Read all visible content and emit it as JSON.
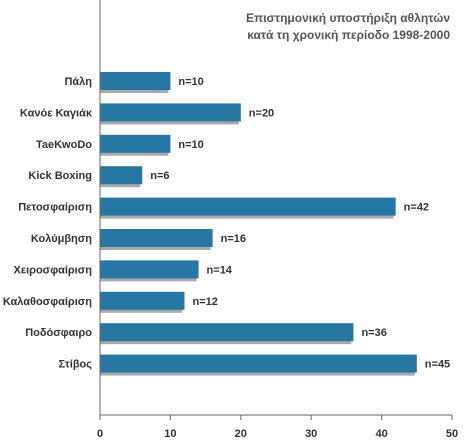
{
  "chart_data": {
    "type": "bar",
    "orientation": "horizontal",
    "title_lines": [
      "Επιστημονική υποστήριξη αθλητών",
      "κατά τη χρονική περίοδο 1998-2000"
    ],
    "categories": [
      "Πάλη",
      "Κανόε Καγιάκ",
      "TaeKwoDo",
      "Kick Boxing",
      "Πετοσφαίριση",
      "Κολύμβηση",
      "Χειροσφαίριση",
      "Καλαθοσφαίριση",
      "Ποδόσφαιρο",
      "Στίβος"
    ],
    "values": [
      10,
      20,
      10,
      6,
      42,
      16,
      14,
      12,
      36,
      45
    ],
    "value_labels": [
      "n=10",
      "n=20",
      "n=10",
      "n=6",
      "n=42",
      "n=16",
      "n=14",
      "n=12",
      "n=36",
      "n=45"
    ],
    "xlim": [
      0,
      50
    ],
    "xticks": [
      0,
      10,
      20,
      30,
      40,
      50
    ],
    "grid": false,
    "legend": "none",
    "colors": {
      "bar": "#2677a2",
      "bar_shadow": "#a9a9a9",
      "axis": "#666666"
    }
  }
}
